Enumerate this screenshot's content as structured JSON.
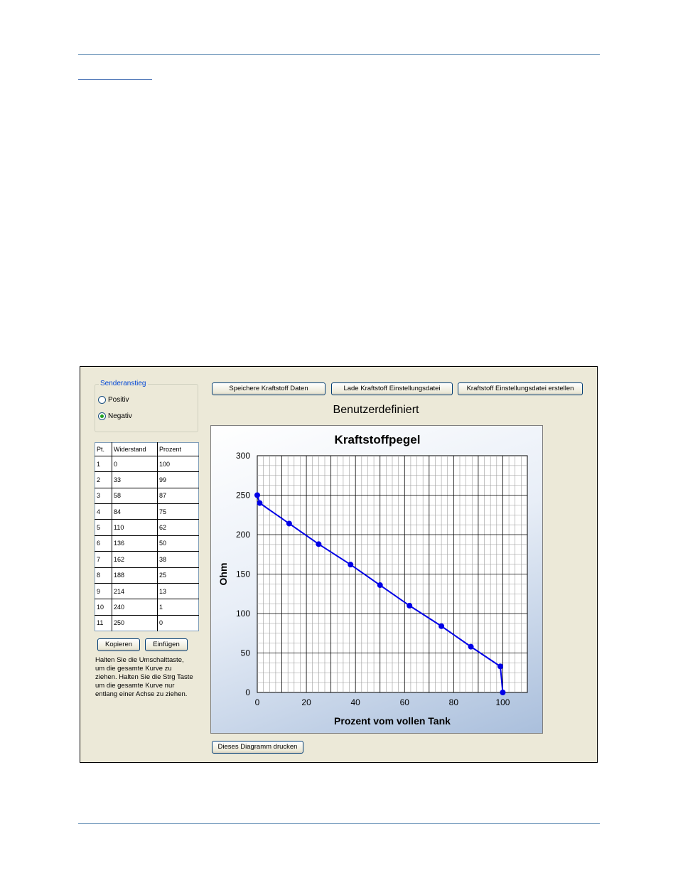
{
  "window": {
    "group_title": "Senderanstieg",
    "radio_options": [
      {
        "label": "Positiv",
        "checked": false
      },
      {
        "label": "Negativ",
        "checked": true
      }
    ],
    "table": {
      "columns": [
        "Pt.",
        "Widerstand",
        "Prozent"
      ],
      "rows": [
        [
          "1",
          "0",
          "100"
        ],
        [
          "2",
          "33",
          "99"
        ],
        [
          "3",
          "58",
          "87"
        ],
        [
          "4",
          "84",
          "75"
        ],
        [
          "5",
          "110",
          "62"
        ],
        [
          "6",
          "136",
          "50"
        ],
        [
          "7",
          "162",
          "38"
        ],
        [
          "8",
          "188",
          "25"
        ],
        [
          "9",
          "214",
          "13"
        ],
        [
          "10",
          "240",
          "1"
        ],
        [
          "11",
          "250",
          "0"
        ]
      ]
    },
    "buttons": {
      "copy": "Kopieren",
      "paste": "Einfügen",
      "save_fuel": "Speichere Kraftstoff Daten",
      "load_fuel": "Lade Kraftstoff Einstellungsdatei",
      "create_fuel": "Kraftstoff Einstellungsdatei erstellen",
      "print_chart": "Dieses Diagramm drucken"
    },
    "hint_text": "Halten Sie die Umschalttaste, um die gesamte Kurve zu ziehen.  Halten Sie die Strg Taste um die gesamte Kurve nur entlang einer Achse zu ziehen.",
    "chart_heading": "Benutzerdefiniert"
  },
  "chart_data": {
    "type": "line",
    "title": "Kraftstoffpegel",
    "xlabel": "Prozent vom vollen Tank",
    "ylabel": "Ohm",
    "xlim": [
      0,
      110
    ],
    "ylim": [
      0,
      300
    ],
    "xticks": [
      0,
      20,
      40,
      60,
      80,
      100
    ],
    "yticks": [
      0,
      50,
      100,
      150,
      200,
      250,
      300
    ],
    "grid": true,
    "line_color": "#0000e6",
    "series": [
      {
        "x": [
          0,
          1,
          13,
          25,
          38,
          50,
          62,
          75,
          87,
          99,
          100
        ],
        "y": [
          250,
          240,
          214,
          188,
          162,
          136,
          110,
          84,
          58,
          33,
          0
        ]
      }
    ]
  }
}
